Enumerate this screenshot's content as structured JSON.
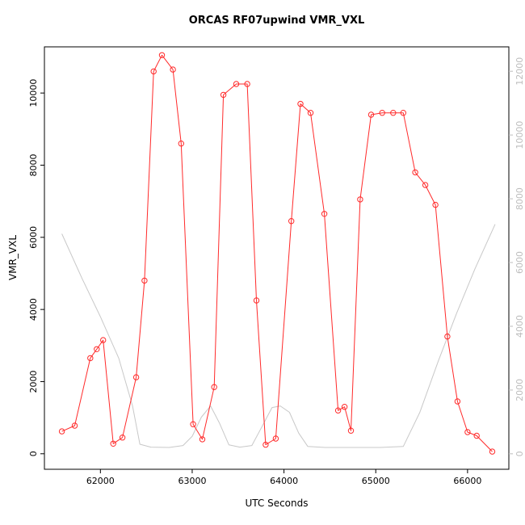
{
  "chart_data": {
    "type": "line",
    "title": "ORCAS RF07upwind VMR_VXL",
    "xlabel": "UTC Seconds",
    "ylabel": "VMR_VXL",
    "grid": false,
    "legend": "none",
    "xlim": [
      61390,
      66450
    ],
    "x_ticks": [
      62000,
      63000,
      64000,
      65000,
      66000
    ],
    "left_axis": {
      "ylim": [
        -430,
        11280
      ],
      "ticks": [
        0,
        2000,
        4000,
        6000,
        8000,
        10000
      ],
      "color": "#000000"
    },
    "right_axis": {
      "ylim": [
        -485,
        12765
      ],
      "ticks": [
        0,
        2000,
        4000,
        6000,
        8000,
        10000,
        12000
      ],
      "color": "#bdbdbd"
    },
    "series": [
      {
        "name": "secondary-gray-trace",
        "axis": "right",
        "color": "#c8c8c8",
        "marker": "none",
        "line": true,
        "points": [
          [
            61580,
            6900
          ],
          [
            61800,
            5500
          ],
          [
            62000,
            4300
          ],
          [
            62200,
            3000
          ],
          [
            62350,
            1500
          ],
          [
            62430,
            300
          ],
          [
            62550,
            210
          ],
          [
            62750,
            200
          ],
          [
            62900,
            260
          ],
          [
            63000,
            550
          ],
          [
            63100,
            1150
          ],
          [
            63200,
            1500
          ],
          [
            63300,
            950
          ],
          [
            63400,
            280
          ],
          [
            63520,
            210
          ],
          [
            63650,
            260
          ],
          [
            63760,
            850
          ],
          [
            63870,
            1450
          ],
          [
            63960,
            1500
          ],
          [
            64060,
            1300
          ],
          [
            64160,
            650
          ],
          [
            64260,
            230
          ],
          [
            64450,
            200
          ],
          [
            64750,
            200
          ],
          [
            65050,
            200
          ],
          [
            65300,
            230
          ],
          [
            65480,
            1300
          ],
          [
            65680,
            2900
          ],
          [
            65880,
            4400
          ],
          [
            66080,
            5800
          ],
          [
            66300,
            7200
          ]
        ]
      },
      {
        "name": "VMR_VXL",
        "axis": "left",
        "color": "#ff2a2a",
        "marker": "open-circle",
        "line": true,
        "points": [
          [
            61580,
            620
          ],
          [
            61720,
            780
          ],
          [
            61890,
            2650
          ],
          [
            61960,
            2900
          ],
          [
            62030,
            3150
          ],
          [
            62140,
            280
          ],
          [
            62240,
            450
          ],
          [
            62390,
            2120
          ],
          [
            62480,
            4800
          ],
          [
            62580,
            10600
          ],
          [
            62670,
            11050
          ],
          [
            62790,
            10650
          ],
          [
            62880,
            8600
          ],
          [
            63010,
            820
          ],
          [
            63110,
            400
          ],
          [
            63240,
            1850
          ],
          [
            63340,
            9950
          ],
          [
            63480,
            10250
          ],
          [
            63600,
            10250
          ],
          [
            63700,
            4250
          ],
          [
            63800,
            250
          ],
          [
            63910,
            420
          ],
          [
            64080,
            6450
          ],
          [
            64180,
            9700
          ],
          [
            64290,
            9450
          ],
          [
            64440,
            6650
          ],
          [
            64590,
            1200
          ],
          [
            64660,
            1300
          ],
          [
            64730,
            640
          ],
          [
            64830,
            7050
          ],
          [
            64950,
            9400
          ],
          [
            65070,
            9450
          ],
          [
            65190,
            9450
          ],
          [
            65300,
            9450
          ],
          [
            65430,
            7800
          ],
          [
            65540,
            7450
          ],
          [
            65650,
            6900
          ],
          [
            65780,
            3250
          ],
          [
            65890,
            1450
          ],
          [
            66000,
            600
          ],
          [
            66100,
            500
          ],
          [
            66270,
            60
          ]
        ]
      }
    ]
  }
}
